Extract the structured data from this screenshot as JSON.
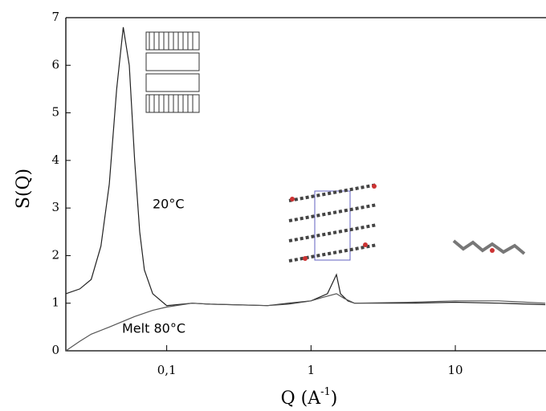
{
  "chart_data": {
    "type": "line",
    "xscale": "log",
    "y_label": "S(Q)",
    "x_label": {
      "text": "Q (A",
      "sup": "-1",
      "end": ")"
    },
    "xlim": [
      0.02,
      42.5
    ],
    "ylim": [
      0,
      7
    ],
    "xticks": [
      {
        "value": 0.1,
        "label": "0,1"
      },
      1,
      10
    ],
    "yticks": [
      0,
      1,
      2,
      3,
      4,
      5,
      6,
      7
    ],
    "series": [
      {
        "name": "20°C",
        "color": "#222222",
        "x": [
          0.02,
          0.025,
          0.03,
          0.035,
          0.04,
          0.045,
          0.05,
          0.055,
          0.06,
          0.065,
          0.07,
          0.08,
          0.1,
          0.15,
          0.2,
          0.5,
          0.7,
          1.0,
          1.3,
          1.5,
          1.6,
          1.8,
          2,
          5,
          10,
          20,
          42
        ],
        "values": [
          1.2,
          1.3,
          1.5,
          2.2,
          3.5,
          5.5,
          6.8,
          6.0,
          4.0,
          2.5,
          1.7,
          1.2,
          0.95,
          1.0,
          0.98,
          0.95,
          1.0,
          1.05,
          1.2,
          1.6,
          1.2,
          1.05,
          1.0,
          1.0,
          1.02,
          1.0,
          0.97
        ]
      },
      {
        "name": "Melt 80°C",
        "color": "#555555",
        "x": [
          0.02,
          0.025,
          0.03,
          0.04,
          0.05,
          0.06,
          0.08,
          0.1,
          0.15,
          0.2,
          0.5,
          0.7,
          1.0,
          1.2,
          1.5,
          1.7,
          2,
          5,
          10,
          20,
          42
        ],
        "values": [
          0.0,
          0.2,
          0.35,
          0.5,
          0.62,
          0.72,
          0.85,
          0.92,
          1.0,
          0.98,
          0.95,
          0.98,
          1.05,
          1.12,
          1.2,
          1.1,
          1.0,
          1.02,
          1.05,
          1.05,
          1.0
        ]
      }
    ]
  }
}
